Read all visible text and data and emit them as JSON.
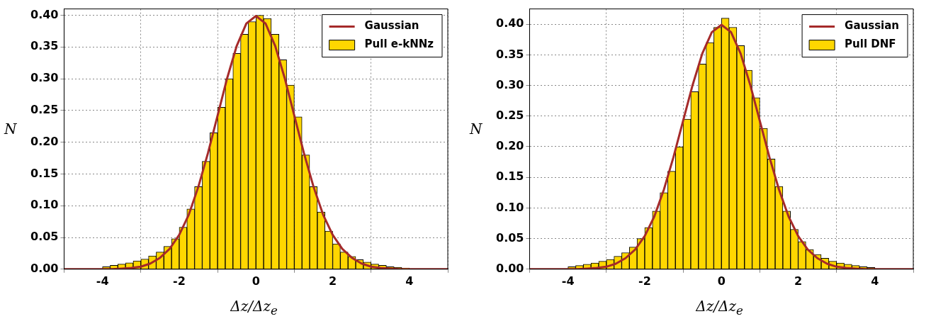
{
  "chart_data": [
    {
      "type": "histogram",
      "xlabel": "Δz/Δz$_{e}$",
      "ylabel": "N",
      "xlim": [
        -5,
        5
      ],
      "xticks": [
        -4,
        -2,
        0,
        2,
        4
      ],
      "ylim": [
        0,
        0.41
      ],
      "yticks": [
        {
          "value": 0,
          "label": "0.00"
        },
        {
          "value": 0.05,
          "label": "0.05"
        },
        {
          "value": 0.1,
          "label": "0.10"
        },
        {
          "value": 0.15,
          "label": "0.15"
        },
        {
          "value": 0.2,
          "label": "0.20"
        },
        {
          "value": 0.25,
          "label": "0.25"
        },
        {
          "value": 0.3,
          "label": "0.30"
        },
        {
          "value": 0.35,
          "label": "0.35"
        },
        {
          "value": 0.4,
          "label": "0.40"
        }
      ],
      "grid": true,
      "legend": "top right",
      "series": [
        {
          "name": "Gaussian",
          "type": "line",
          "color": "#a52a2a",
          "x": [
            -5,
            -4.75,
            -4.5,
            -4.25,
            -4,
            -3.75,
            -3.5,
            -3.25,
            -3,
            -2.75,
            -2.5,
            -2.25,
            -2,
            -1.75,
            -1.5,
            -1.25,
            -1,
            -0.75,
            -0.5,
            -0.25,
            0,
            0.25,
            0.5,
            0.75,
            1,
            1.25,
            1.5,
            1.75,
            2,
            2.25,
            2.5,
            2.75,
            3,
            3.25,
            3.5,
            3.75,
            4,
            4.25,
            4.5,
            4.75,
            5
          ],
          "values": [
            0,
            0,
            0,
            0,
            0,
            0,
            0.001,
            0.002,
            0.004,
            0.009,
            0.018,
            0.032,
            0.054,
            0.086,
            0.13,
            0.183,
            0.242,
            0.301,
            0.352,
            0.387,
            0.399,
            0.387,
            0.352,
            0.301,
            0.242,
            0.183,
            0.13,
            0.086,
            0.054,
            0.032,
            0.018,
            0.009,
            0.004,
            0.002,
            0.001,
            0,
            0,
            0,
            0,
            0,
            0
          ]
        },
        {
          "name": "Pull e-kNNz",
          "type": "histogram",
          "color": "#ffd700",
          "bins": [
            -4,
            -3.8,
            -3.6,
            -3.4,
            -3.2,
            -3,
            -2.8,
            -2.6,
            -2.4,
            -2.2,
            -2,
            -1.8,
            -1.6,
            -1.4,
            -1.2,
            -1,
            -0.8,
            -0.6,
            -0.4,
            -0.2,
            0,
            0.2,
            0.4,
            0.6,
            0.8,
            1,
            1.2,
            1.4,
            1.6,
            1.8,
            2,
            2.2,
            2.4,
            2.6,
            2.8,
            3,
            3.2,
            3.4,
            3.6,
            3.8,
            4
          ],
          "values": [
            0.004,
            0.006,
            0.008,
            0.01,
            0.013,
            0.016,
            0.021,
            0.027,
            0.036,
            0.048,
            0.066,
            0.095,
            0.13,
            0.17,
            0.215,
            0.255,
            0.3,
            0.34,
            0.37,
            0.39,
            0.4,
            0.395,
            0.37,
            0.33,
            0.29,
            0.24,
            0.18,
            0.13,
            0.09,
            0.06,
            0.04,
            0.027,
            0.02,
            0.015,
            0.011,
            0.008,
            0.006,
            0.004,
            0.003,
            0.002
          ]
        }
      ]
    },
    {
      "type": "histogram",
      "xlabel": "Δz/Δz$_{e}$",
      "ylabel": "N",
      "xlim": [
        -5,
        5
      ],
      "xticks": [
        -4,
        -2,
        0,
        2,
        4
      ],
      "ylim": [
        0,
        0.425
      ],
      "yticks": [
        {
          "value": 0,
          "label": "0.00"
        },
        {
          "value": 0.05,
          "label": "0.05"
        },
        {
          "value": 0.1,
          "label": "0.10"
        },
        {
          "value": 0.15,
          "label": "0.15"
        },
        {
          "value": 0.2,
          "label": "0.20"
        },
        {
          "value": 0.25,
          "label": "0.25"
        },
        {
          "value": 0.3,
          "label": "0.30"
        },
        {
          "value": 0.35,
          "label": "0.35"
        },
        {
          "value": 0.4,
          "label": "0.40"
        }
      ],
      "grid": true,
      "legend": "top right",
      "series": [
        {
          "name": "Gaussian",
          "type": "line",
          "color": "#a52a2a",
          "x": [
            -5,
            -4.75,
            -4.5,
            -4.25,
            -4,
            -3.75,
            -3.5,
            -3.25,
            -3,
            -2.75,
            -2.5,
            -2.25,
            -2,
            -1.75,
            -1.5,
            -1.25,
            -1,
            -0.75,
            -0.5,
            -0.25,
            0,
            0.25,
            0.5,
            0.75,
            1,
            1.25,
            1.5,
            1.75,
            2,
            2.25,
            2.5,
            2.75,
            3,
            3.25,
            3.5,
            3.75,
            4,
            4.25,
            4.5,
            4.75,
            5
          ],
          "values": [
            0,
            0,
            0,
            0,
            0,
            0,
            0.001,
            0.002,
            0.004,
            0.009,
            0.018,
            0.032,
            0.054,
            0.086,
            0.13,
            0.183,
            0.242,
            0.301,
            0.352,
            0.387,
            0.399,
            0.387,
            0.352,
            0.301,
            0.242,
            0.183,
            0.13,
            0.086,
            0.054,
            0.032,
            0.018,
            0.009,
            0.004,
            0.002,
            0.001,
            0,
            0,
            0,
            0,
            0,
            0
          ]
        },
        {
          "name": "Pull DNF",
          "type": "histogram",
          "color": "#ffd700",
          "bins": [
            -4,
            -3.8,
            -3.6,
            -3.4,
            -3.2,
            -3,
            -2.8,
            -2.6,
            -2.4,
            -2.2,
            -2,
            -1.8,
            -1.6,
            -1.4,
            -1.2,
            -1,
            -0.8,
            -0.6,
            -0.4,
            -0.2,
            0,
            0.2,
            0.4,
            0.6,
            0.8,
            1,
            1.2,
            1.4,
            1.6,
            1.8,
            2,
            2.2,
            2.4,
            2.6,
            2.8,
            3,
            3.2,
            3.4,
            3.6,
            3.8,
            4
          ],
          "values": [
            0.004,
            0.006,
            0.008,
            0.01,
            0.013,
            0.016,
            0.021,
            0.027,
            0.036,
            0.05,
            0.068,
            0.095,
            0.125,
            0.16,
            0.2,
            0.245,
            0.29,
            0.335,
            0.37,
            0.395,
            0.41,
            0.395,
            0.365,
            0.325,
            0.28,
            0.23,
            0.18,
            0.135,
            0.095,
            0.065,
            0.045,
            0.032,
            0.024,
            0.018,
            0.013,
            0.01,
            0.008,
            0.006,
            0.004,
            0.003
          ]
        }
      ]
    }
  ]
}
